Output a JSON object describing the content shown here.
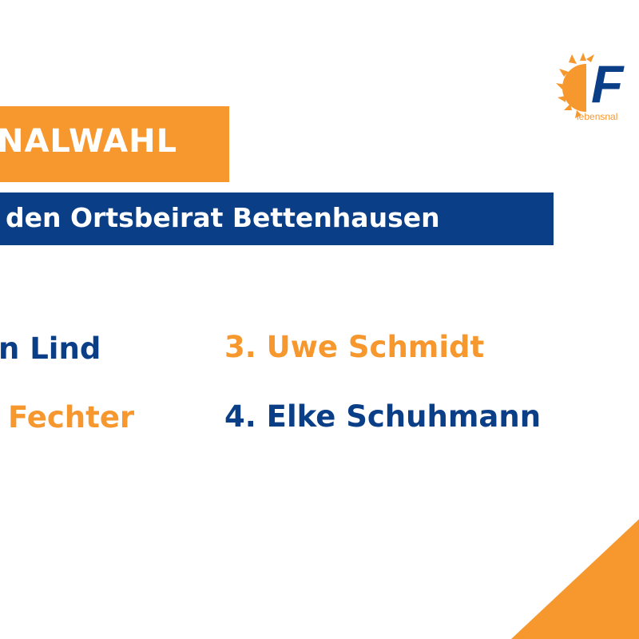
{
  "header": {
    "title": "NALWAHL",
    "subtitle": "den Ortsbeirat Bettenhausen"
  },
  "candidates": [
    {
      "label": "n Lind"
    },
    {
      "label": "Fechter"
    },
    {
      "label": "3. Uwe Schmidt"
    },
    {
      "label": "4. Elke Schuhmann"
    }
  ],
  "logo": {
    "letter": "F",
    "tagline": "lebensnal"
  },
  "colors": {
    "orange": "#F7982F",
    "blue": "#0A3F87"
  }
}
